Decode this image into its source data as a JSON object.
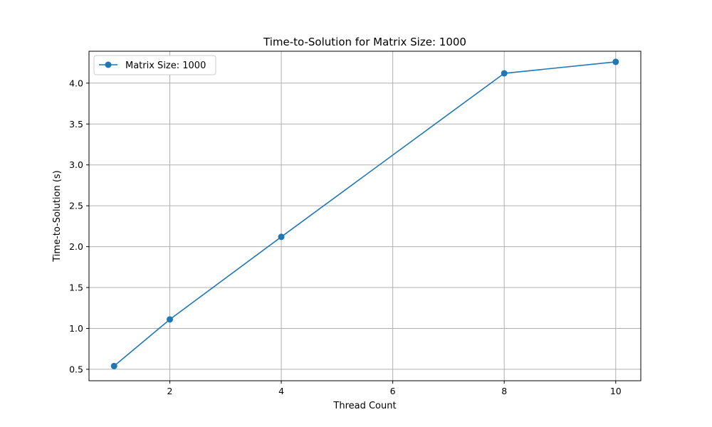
{
  "chart_data": {
    "type": "line",
    "title": "Time-to-Solution for Matrix Size: 1000",
    "xlabel": "Thread Count",
    "ylabel": "Time-to-Solution (s)",
    "xlim": [
      0.55,
      10.45
    ],
    "ylim": [
      0.36,
      4.39
    ],
    "xticks": [
      2,
      4,
      6,
      8,
      10
    ],
    "yticks": [
      0.5,
      1.0,
      1.5,
      2.0,
      2.5,
      3.0,
      3.5,
      4.0
    ],
    "xtick_labels": [
      "2",
      "4",
      "6",
      "8",
      "10"
    ],
    "ytick_labels": [
      "0.5",
      "1.0",
      "1.5",
      "2.0",
      "2.5",
      "3.0",
      "3.5",
      "4.0"
    ],
    "grid": true,
    "legend_position": "top-left",
    "series": [
      {
        "name": "Matrix Size: 1000",
        "color": "#1f77b4",
        "marker": "circle",
        "x": [
          1,
          2,
          4,
          8,
          10
        ],
        "y": [
          0.54,
          1.11,
          2.12,
          4.12,
          4.26
        ]
      }
    ]
  }
}
